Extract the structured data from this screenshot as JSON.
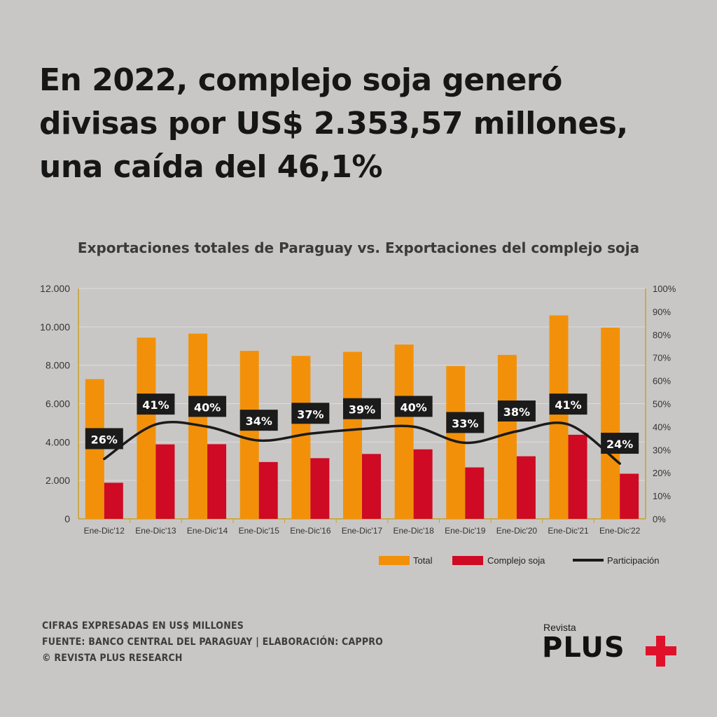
{
  "headline": "En 2022, complejo soja generó divisas por US$ 2.353,57 millones, una caída del 46,1%",
  "chart_data": {
    "type": "bar",
    "title": "Exportaciones totales de Paraguay vs. Exportaciones del complejo soja",
    "categories": [
      "Ene-Dic'12",
      "Ene-Dic'13",
      "Ene-Dic'14",
      "Ene-Dic'15",
      "Ene-Dic'16",
      "Ene-Dic'17",
      "Ene-Dic'18",
      "Ene-Dic'19",
      "Ene-Dic'20",
      "Ene-Dic'21",
      "Ene-Dic'22"
    ],
    "series": [
      {
        "name": "Total",
        "type": "bar",
        "axis": "left",
        "color": "#f29109",
        "values": [
          7280,
          9440,
          9650,
          8750,
          8490,
          8700,
          9080,
          7960,
          8540,
          10600,
          9960
        ]
      },
      {
        "name": "Complejo soja",
        "type": "bar",
        "axis": "left",
        "color": "#cf0a24",
        "values": [
          1880,
          3880,
          3890,
          2960,
          3160,
          3380,
          3620,
          2680,
          3260,
          4380,
          2350
        ]
      },
      {
        "name": "Participación",
        "type": "line",
        "axis": "right",
        "color": "#1a1a1a",
        "values": [
          26,
          41,
          40,
          34,
          37,
          39,
          40,
          33,
          38,
          41,
          24
        ]
      }
    ],
    "data_labels": [
      "26%",
      "41%",
      "40%",
      "34%",
      "37%",
      "39%",
      "40%",
      "33%",
      "38%",
      "41%",
      "24%"
    ],
    "y_left": {
      "ylim": [
        0,
        12000
      ],
      "ticks": [
        0,
        2000,
        4000,
        6000,
        8000,
        10000,
        12000
      ],
      "tick_labels": [
        "0",
        "2.000",
        "4.000",
        "6.000",
        "8.000",
        "10.000",
        "12.000"
      ]
    },
    "y_right": {
      "ylim": [
        0,
        100
      ],
      "ticks": [
        0,
        10,
        20,
        30,
        40,
        50,
        60,
        70,
        80,
        90,
        100
      ],
      "tick_labels": [
        "0%",
        "10%",
        "20%",
        "30%",
        "40%",
        "50%",
        "60%",
        "70%",
        "80%",
        "90%",
        "100%"
      ]
    },
    "legend": {
      "position": "bottom-right",
      "labels": [
        "Total",
        "Complejo soja",
        "Participación"
      ]
    },
    "grid": true
  },
  "footnotes": [
    "Cifras expresadas en US$ millones",
    "Fuente: Banco Central del Paraguay  |  Elaboración: CAPPRO",
    "© Revista Plus Research"
  ],
  "logo": {
    "small": "Revista",
    "main": "PLUS"
  }
}
